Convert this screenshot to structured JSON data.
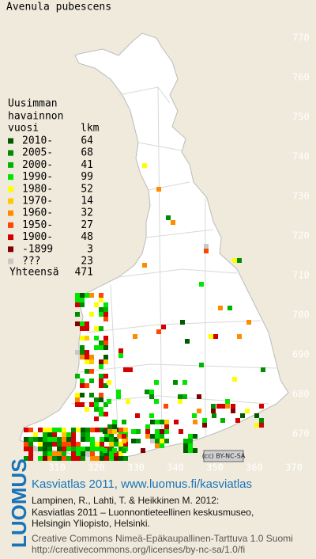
{
  "title": "Avenula pubescens",
  "legend": {
    "heading": [
      "Uusimman",
      "havainnon",
      "vuosi"
    ],
    "count_heading": "lkm",
    "rows": [
      {
        "label": "2010-",
        "count": 64,
        "color": "#005a00"
      },
      {
        "label": "2005-",
        "count": 68,
        "color": "#008c00"
      },
      {
        "label": "2000-",
        "count": 41,
        "color": "#00b400"
      },
      {
        "label": "1990-",
        "count": 99,
        "color": "#00e600"
      },
      {
        "label": "1980-",
        "count": 52,
        "color": "#ffff00"
      },
      {
        "label": "1970-",
        "count": 14,
        "color": "#ffc800"
      },
      {
        "label": "1960-",
        "count": 32,
        "color": "#ff8c00"
      },
      {
        "label": "1950-",
        "count": 27,
        "color": "#ff4600"
      },
      {
        "label": "1900-",
        "count": 48,
        "color": "#d20000"
      },
      {
        "label": "-1899",
        "count": 3,
        "color": "#820000"
      },
      {
        "label": "???",
        "count": 23,
        "color": "#c8c8c8"
      }
    ],
    "total_label": "Yhteensä",
    "total": 471
  },
  "grid": {
    "y_labels": [
      770,
      760,
      750,
      740,
      730,
      720,
      710,
      700,
      690,
      680,
      670
    ],
    "x_labels": [
      310,
      320,
      330,
      340,
      350,
      360,
      370
    ]
  },
  "license_badge": "(cc) BY-NC-SA",
  "footer": {
    "logo": "LUOMUS",
    "link": "Kasviatlas 2011, www.luomus.fi/kasviatlas",
    "citation": [
      "Lampinen, R., Lahti, T. & Heikkinen M. 2012:",
      "Kasviatlas 2011 – Luonnontieteellinen keskusmuseo,",
      "Helsingin Yliopisto, Helsinki."
    ],
    "license": [
      "Creative Commons Nimeä-Epäkaupallinen-Tarttuva 1.0 Suomi",
      "http://creativecommons.org/licenses/by-nc-sa/1.0/fi"
    ]
  }
}
